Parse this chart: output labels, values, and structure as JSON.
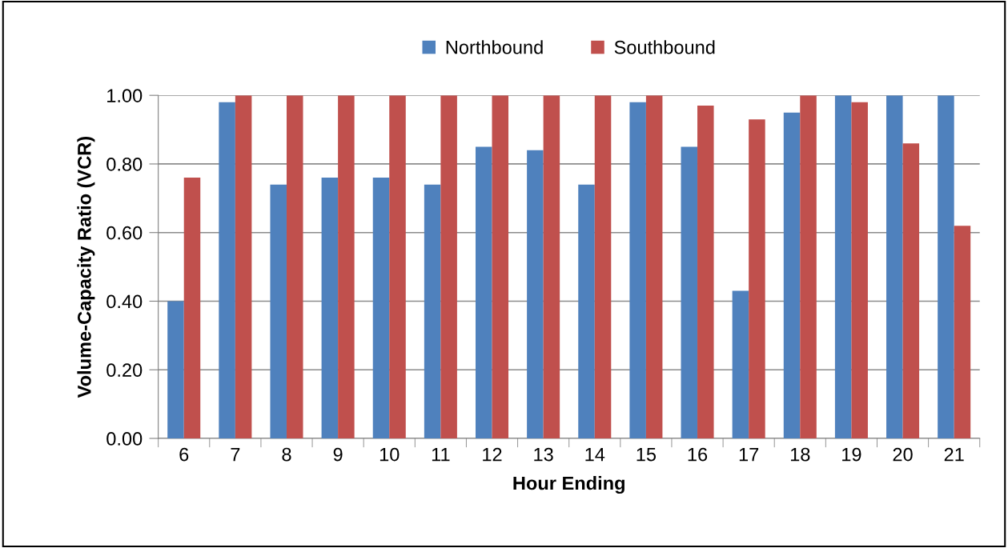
{
  "chart_data": {
    "type": "bar",
    "xlabel": "Hour Ending",
    "ylabel": "Volume-Capacity Ratio (VCR)",
    "categories": [
      "6",
      "7",
      "8",
      "9",
      "10",
      "11",
      "12",
      "13",
      "14",
      "15",
      "16",
      "17",
      "18",
      "19",
      "20",
      "21"
    ],
    "series": [
      {
        "name": "Northbound",
        "color": "#4f81bd",
        "values": [
          0.4,
          0.98,
          0.74,
          0.76,
          0.76,
          0.74,
          0.85,
          0.84,
          0.74,
          0.98,
          0.85,
          0.43,
          0.95,
          1.0,
          1.0,
          1.0
        ]
      },
      {
        "name": "Southbound",
        "color": "#c0504d",
        "values": [
          0.76,
          1.0,
          1.0,
          1.0,
          1.0,
          1.0,
          1.0,
          1.0,
          1.0,
          1.0,
          0.97,
          0.93,
          1.0,
          0.98,
          0.86,
          0.62
        ]
      }
    ],
    "ylim": [
      0,
      1
    ],
    "yticks": [
      {
        "value": 0,
        "label": "0.00"
      },
      {
        "value": 0.2,
        "label": "0.20"
      },
      {
        "value": 0.4,
        "label": "0.40"
      },
      {
        "value": 0.6,
        "label": "0.60"
      },
      {
        "value": 0.8,
        "label": "0.80"
      },
      {
        "value": 1,
        "label": "1.00"
      }
    ],
    "grid": "y",
    "legend": "top"
  }
}
